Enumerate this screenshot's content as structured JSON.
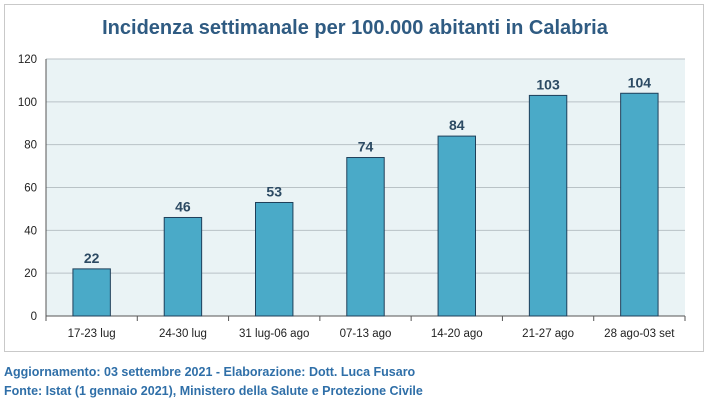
{
  "chart_data": {
    "type": "bar",
    "title": "Incidenza settimanale per 100.000 abitanti in Calabria",
    "categories": [
      "17-23 lug",
      "24-30 lug",
      "31 lug-06 ago",
      "07-13 ago",
      "14-20 ago",
      "21-27 ago",
      "28 ago-03 set"
    ],
    "values": [
      22,
      46,
      53,
      74,
      84,
      103,
      104
    ],
    "data_labels": [
      "22",
      "46",
      "53",
      "74",
      "84",
      "103",
      "104"
    ],
    "ylim": [
      0,
      120
    ],
    "yticks": [
      0,
      20,
      40,
      60,
      80,
      100,
      120
    ],
    "grid": true,
    "legend": "none",
    "bar_color": "#4aaac8",
    "bar_edge_color": "#1f3f5a",
    "label_color": "#2c4a63",
    "plot_background": "#eaf3f5"
  },
  "footer": {
    "line1": "Aggiornamento: 03 settembre 2021 - Elaborazione: Dott. Luca Fusaro",
    "line2": "Fonte: Istat (1 gennaio 2021), Ministero della Salute e Protezione Civile"
  }
}
